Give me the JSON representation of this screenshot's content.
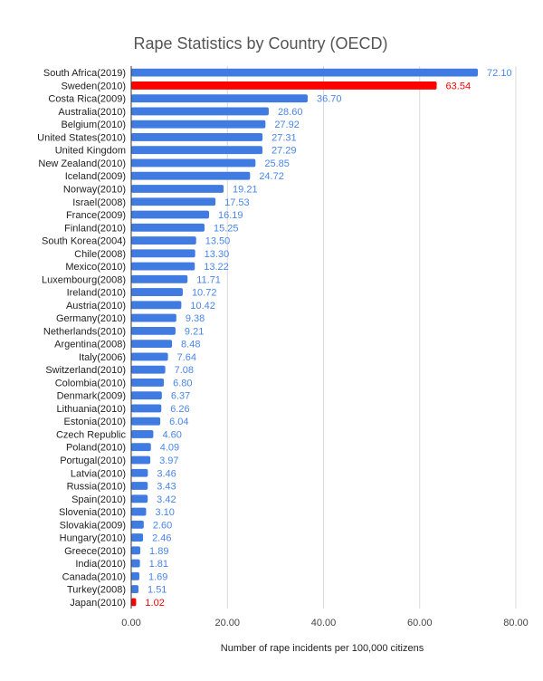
{
  "chart_data": {
    "type": "bar",
    "orientation": "horizontal",
    "title": "Rape Statistics by Country (OECD)",
    "xlabel": "Number of rape incidents per 100,000 citizens",
    "ylabel": "",
    "xlim": [
      0,
      80
    ],
    "xticks": [
      "0.00",
      "20.00",
      "40.00",
      "60.00",
      "80.00"
    ],
    "grid": true,
    "legend": "none",
    "colors": {
      "default": "#3f7be0",
      "highlight": "#ff0000",
      "label_default": "#4a86e8",
      "label_highlight": "#ff0000"
    },
    "categories": [
      "South Africa(2019)",
      "Sweden(2010)",
      "Costa Rica(2009)",
      "Australia(2010)",
      "Belgium(2010)",
      "United States(2010)",
      "United Kingdom",
      "New Zealand(2010)",
      "Iceland(2009)",
      "Norway(2010)",
      "Israel(2008)",
      "France(2009)",
      "Finland(2010)",
      "South Korea(2004)",
      "Chile(2008)",
      "Mexico(2010)",
      "Luxembourg(2008)",
      "Ireland(2010)",
      "Austria(2010)",
      "Germany(2010)",
      "Netherlands(2010)",
      "Argentina(2008)",
      "Italy(2006)",
      "Switzerland(2010)",
      "Colombia(2010)",
      "Denmark(2009)",
      "Lithuania(2010)",
      "Estonia(2010)",
      "Czech Republic",
      "Poland(2010)",
      "Portugal(2010)",
      "Latvia(2010)",
      "Russia(2010)",
      "Spain(2010)",
      "Slovenia(2010)",
      "Slovakia(2009)",
      "Hungary(2010)",
      "Greece(2010)",
      "India(2010)",
      "Canada(2010)",
      "Turkey(2008)",
      "Japan(2010)"
    ],
    "values": [
      72.1,
      63.54,
      36.7,
      28.6,
      27.92,
      27.31,
      27.29,
      25.85,
      24.72,
      19.21,
      17.53,
      16.19,
      15.25,
      13.5,
      13.3,
      13.22,
      11.71,
      10.72,
      10.42,
      9.38,
      9.21,
      8.48,
      7.64,
      7.08,
      6.8,
      6.37,
      6.26,
      6.04,
      4.6,
      4.09,
      3.97,
      3.46,
      3.43,
      3.42,
      3.1,
      2.6,
      2.46,
      1.89,
      1.81,
      1.69,
      1.51,
      1.02
    ],
    "value_labels": [
      "72.10",
      "63.54",
      "36.70",
      "28.60",
      "27.92",
      "27.31",
      "27.29",
      "25.85",
      "24.72",
      "19.21",
      "17.53",
      "16.19",
      "15.25",
      "13.50",
      "13.30",
      "13.22",
      "11.71",
      "10.72",
      "10.42",
      "9.38",
      "9.21",
      "8.48",
      "7.64",
      "7.08",
      "6.80",
      "6.37",
      "6.26",
      "6.04",
      "4.60",
      "4.09",
      "3.97",
      "3.46",
      "3.43",
      "3.42",
      "3.10",
      "2.60",
      "2.46",
      "1.89",
      "1.81",
      "1.69",
      "1.51",
      "1.02"
    ],
    "highlighted": [
      "Sweden(2010)",
      "Japan(2010)"
    ]
  }
}
